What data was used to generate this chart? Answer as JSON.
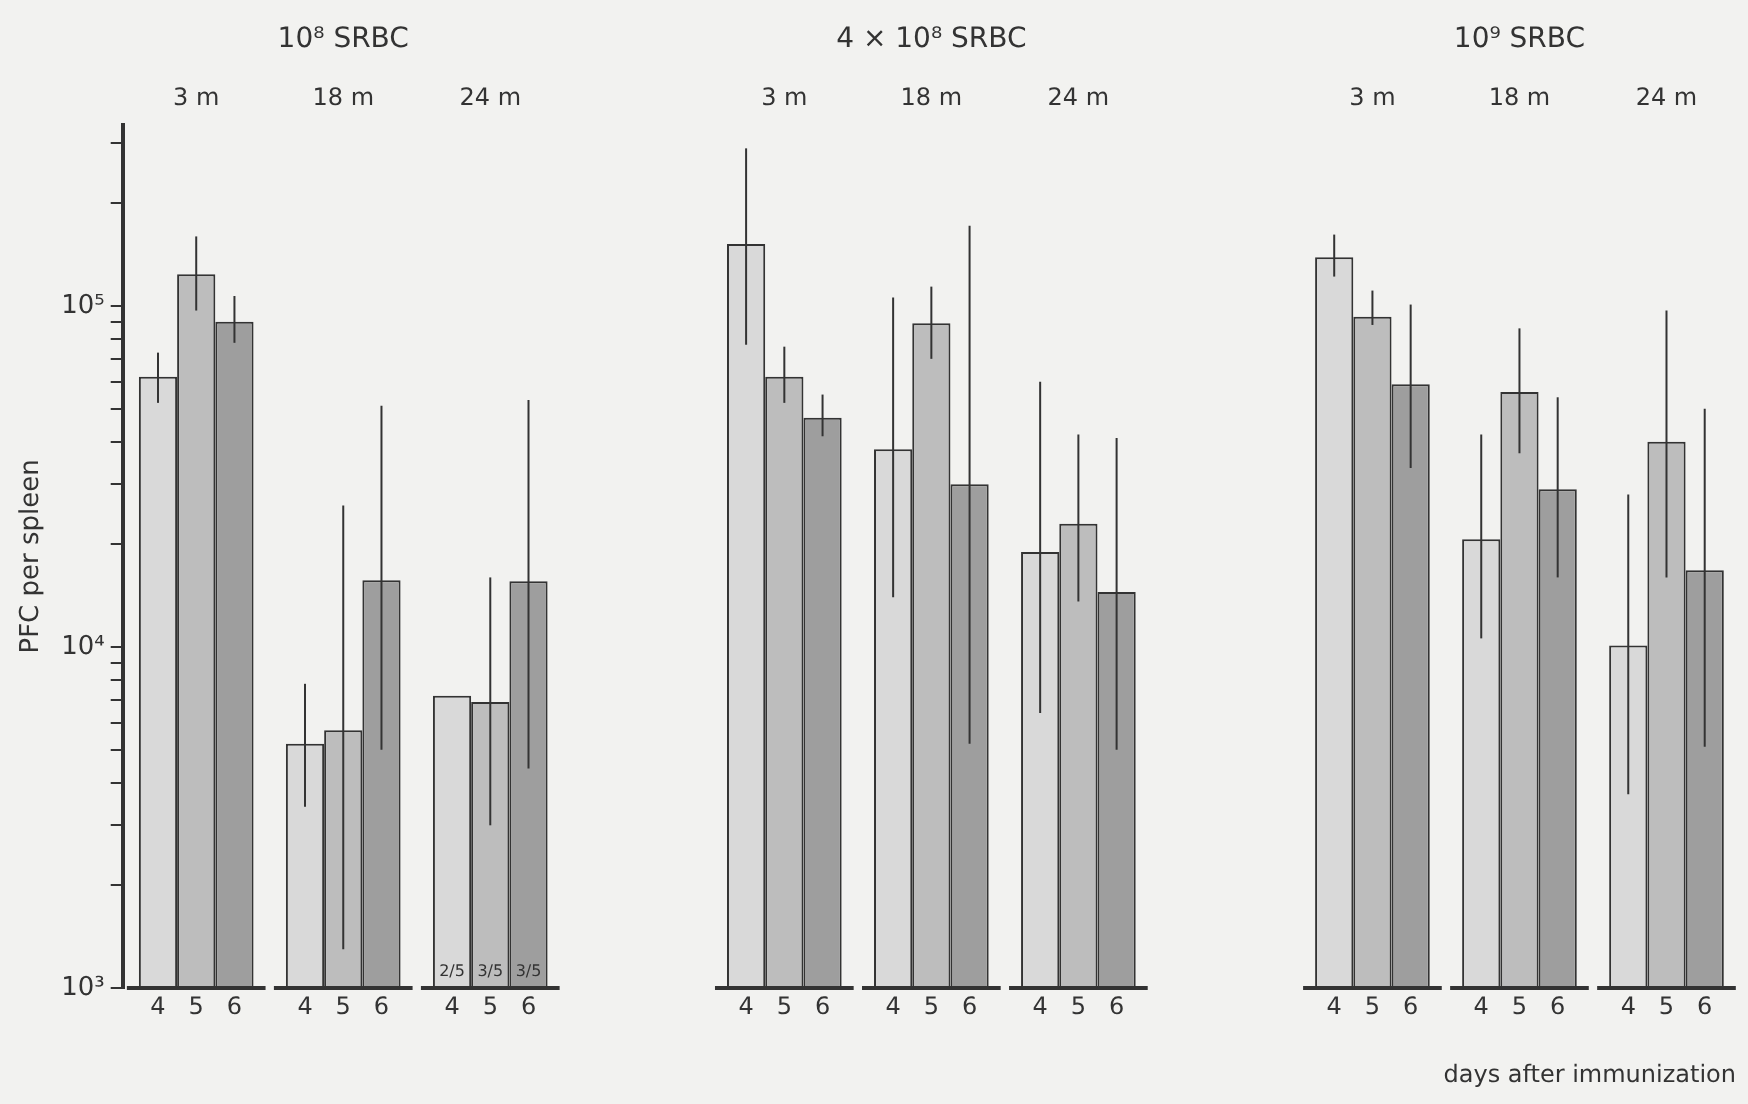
{
  "chart_data": {
    "type": "bar",
    "ylabel": "PFC per spleen",
    "xlabel": "days after immunization",
    "categories": [
      "3 m",
      "18 m",
      "24 m",
      null,
      "3 m",
      "18 m",
      "24 m",
      null,
      "3 m",
      "18 m",
      "24 m"
    ],
    "log": true,
    "ylim": [
      1000,
      340000
    ],
    "yticks": [
      {
        "value": 1000,
        "label": "10³"
      },
      {
        "value": 2000,
        "label": null
      },
      {
        "value": 3000,
        "label": null
      },
      {
        "value": 4000,
        "label": null
      },
      {
        "value": 5000,
        "label": null
      },
      {
        "value": 6000,
        "label": null
      },
      {
        "value": 7000,
        "label": null
      },
      {
        "value": 8000,
        "label": null
      },
      {
        "value": 9000,
        "label": null
      },
      {
        "value": 10000,
        "label": "10⁴"
      },
      {
        "value": 20000,
        "label": null
      },
      {
        "value": 30000,
        "label": null
      },
      {
        "value": 40000,
        "label": null
      },
      {
        "value": 50000,
        "label": null
      },
      {
        "value": 60000,
        "label": null
      },
      {
        "value": 70000,
        "label": null
      },
      {
        "value": 80000,
        "label": null
      },
      {
        "value": 90000,
        "label": null
      },
      {
        "value": 100000,
        "label": "10⁵"
      },
      {
        "value": 200000,
        "label": null
      },
      {
        "value": 300000,
        "label": null
      }
    ],
    "grid": "y",
    "legend": false,
    "annotations": [
      "10⁸ SRBC",
      "4 × 10⁸ SRBC",
      "10⁹ SRBC",
      "2/5",
      "3/5",
      "3/5"
    ],
    "series": [
      {
        "name": "4",
        "color": "#d9d9d9",
        "values": [
          62000,
          5200,
          7200,
          null,
          152000,
          38000,
          19000,
          null,
          139000,
          20700,
          10100
        ],
        "errors": [
          [
            52000,
            73000
          ],
          [
            3400,
            7800
          ],
          null,
          null,
          [
            77000,
            290000
          ],
          [
            14000,
            106000
          ],
          [
            6400,
            60000
          ],
          null,
          [
            122000,
            162000
          ],
          [
            10600,
            42000
          ],
          [
            3700,
            28000
          ]
        ]
      },
      {
        "name": "5",
        "color": "#bdbdbd",
        "values": [
          124000,
          5700,
          6900,
          null,
          62000,
          89000,
          23000,
          null,
          93000,
          56000,
          40000
        ],
        "errors": [
          [
            97000,
            160000
          ],
          [
            1300,
            26000
          ],
          [
            3000,
            16000
          ],
          null,
          [
            52000,
            76000
          ],
          [
            70000,
            114000
          ],
          [
            13600,
            42000
          ],
          null,
          [
            88000,
            111000
          ],
          [
            37000,
            86000
          ],
          [
            16000,
            97000
          ]
        ]
      },
      {
        "name": "6",
        "color": "#9e9e9e",
        "values": [
          90000,
          15700,
          15600,
          null,
          47000,
          30000,
          14500,
          null,
          59000,
          29000,
          16800
        ],
        "errors": [
          [
            78000,
            107000
          ],
          [
            5000,
            51000
          ],
          [
            4400,
            53000
          ],
          null,
          [
            41500,
            55000
          ],
          [
            5200,
            172000
          ],
          [
            5000,
            41000
          ],
          null,
          [
            33500,
            101000
          ],
          [
            16000,
            54000
          ],
          [
            5100,
            50000
          ]
        ]
      }
    ]
  }
}
